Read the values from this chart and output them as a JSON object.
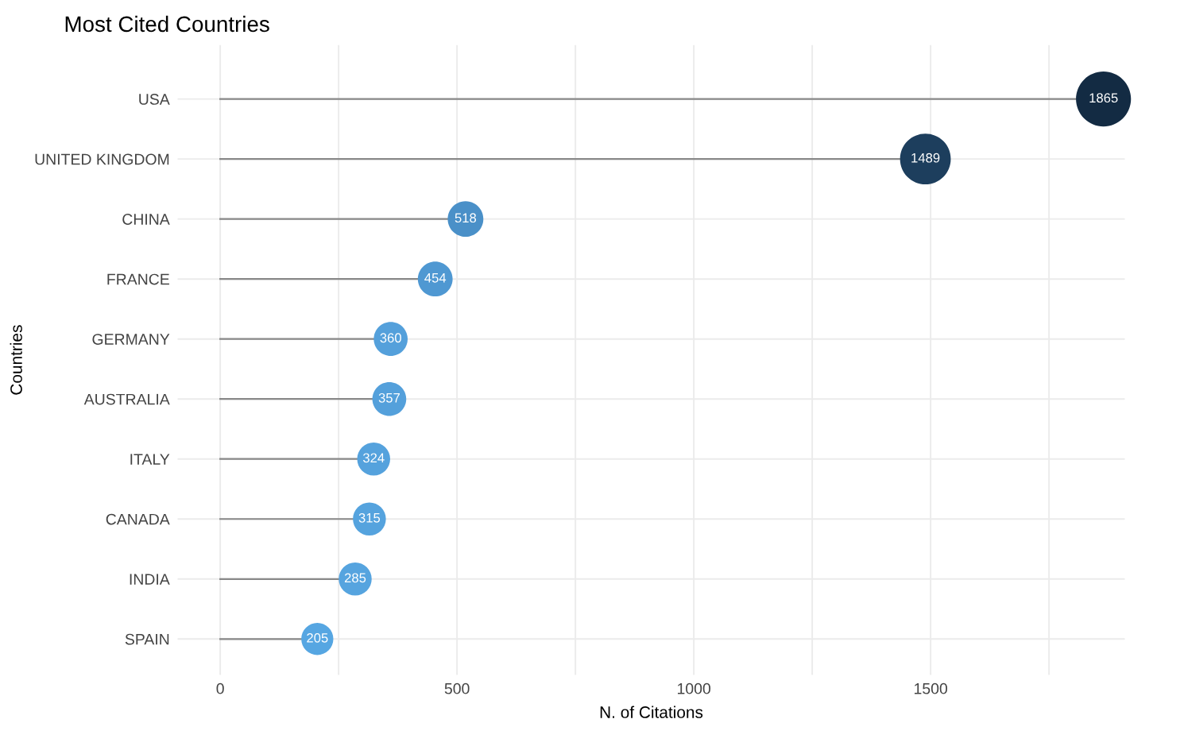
{
  "chart_data": {
    "type": "lollipop",
    "orientation": "horizontal",
    "title": "Most Cited Countries",
    "xlabel": "N. of Citations",
    "ylabel": "Countries",
    "categories": [
      "USA",
      "UNITED KINGDOM",
      "CHINA",
      "FRANCE",
      "GERMANY",
      "AUSTRALIA",
      "ITALY",
      "CANADA",
      "INDIA",
      "SPAIN"
    ],
    "values": [
      1865,
      1489,
      518,
      454,
      360,
      357,
      324,
      315,
      285,
      205
    ],
    "colors": [
      "#132b43",
      "#1d3e5d",
      "#4a90c8",
      "#4f98d2",
      "#54a0db",
      "#54a0db",
      "#55a2dd",
      "#55a3de",
      "#56a4df",
      "#56a6e2"
    ],
    "sizes": [
      1,
      0.85,
      0.42,
      0.4,
      0.38,
      0.38,
      0.36,
      0.36,
      0.36,
      0.34
    ],
    "data_labels": true,
    "xlim": [
      -90,
      1910
    ],
    "xticks": [
      0,
      {
        "value": 250,
        "label": null
      },
      500,
      {
        "value": 750,
        "label": null
      },
      1000,
      {
        "value": 1250,
        "label": null
      },
      1500,
      {
        "value": 1750,
        "label": null
      }
    ],
    "grid": true,
    "legend": false
  }
}
